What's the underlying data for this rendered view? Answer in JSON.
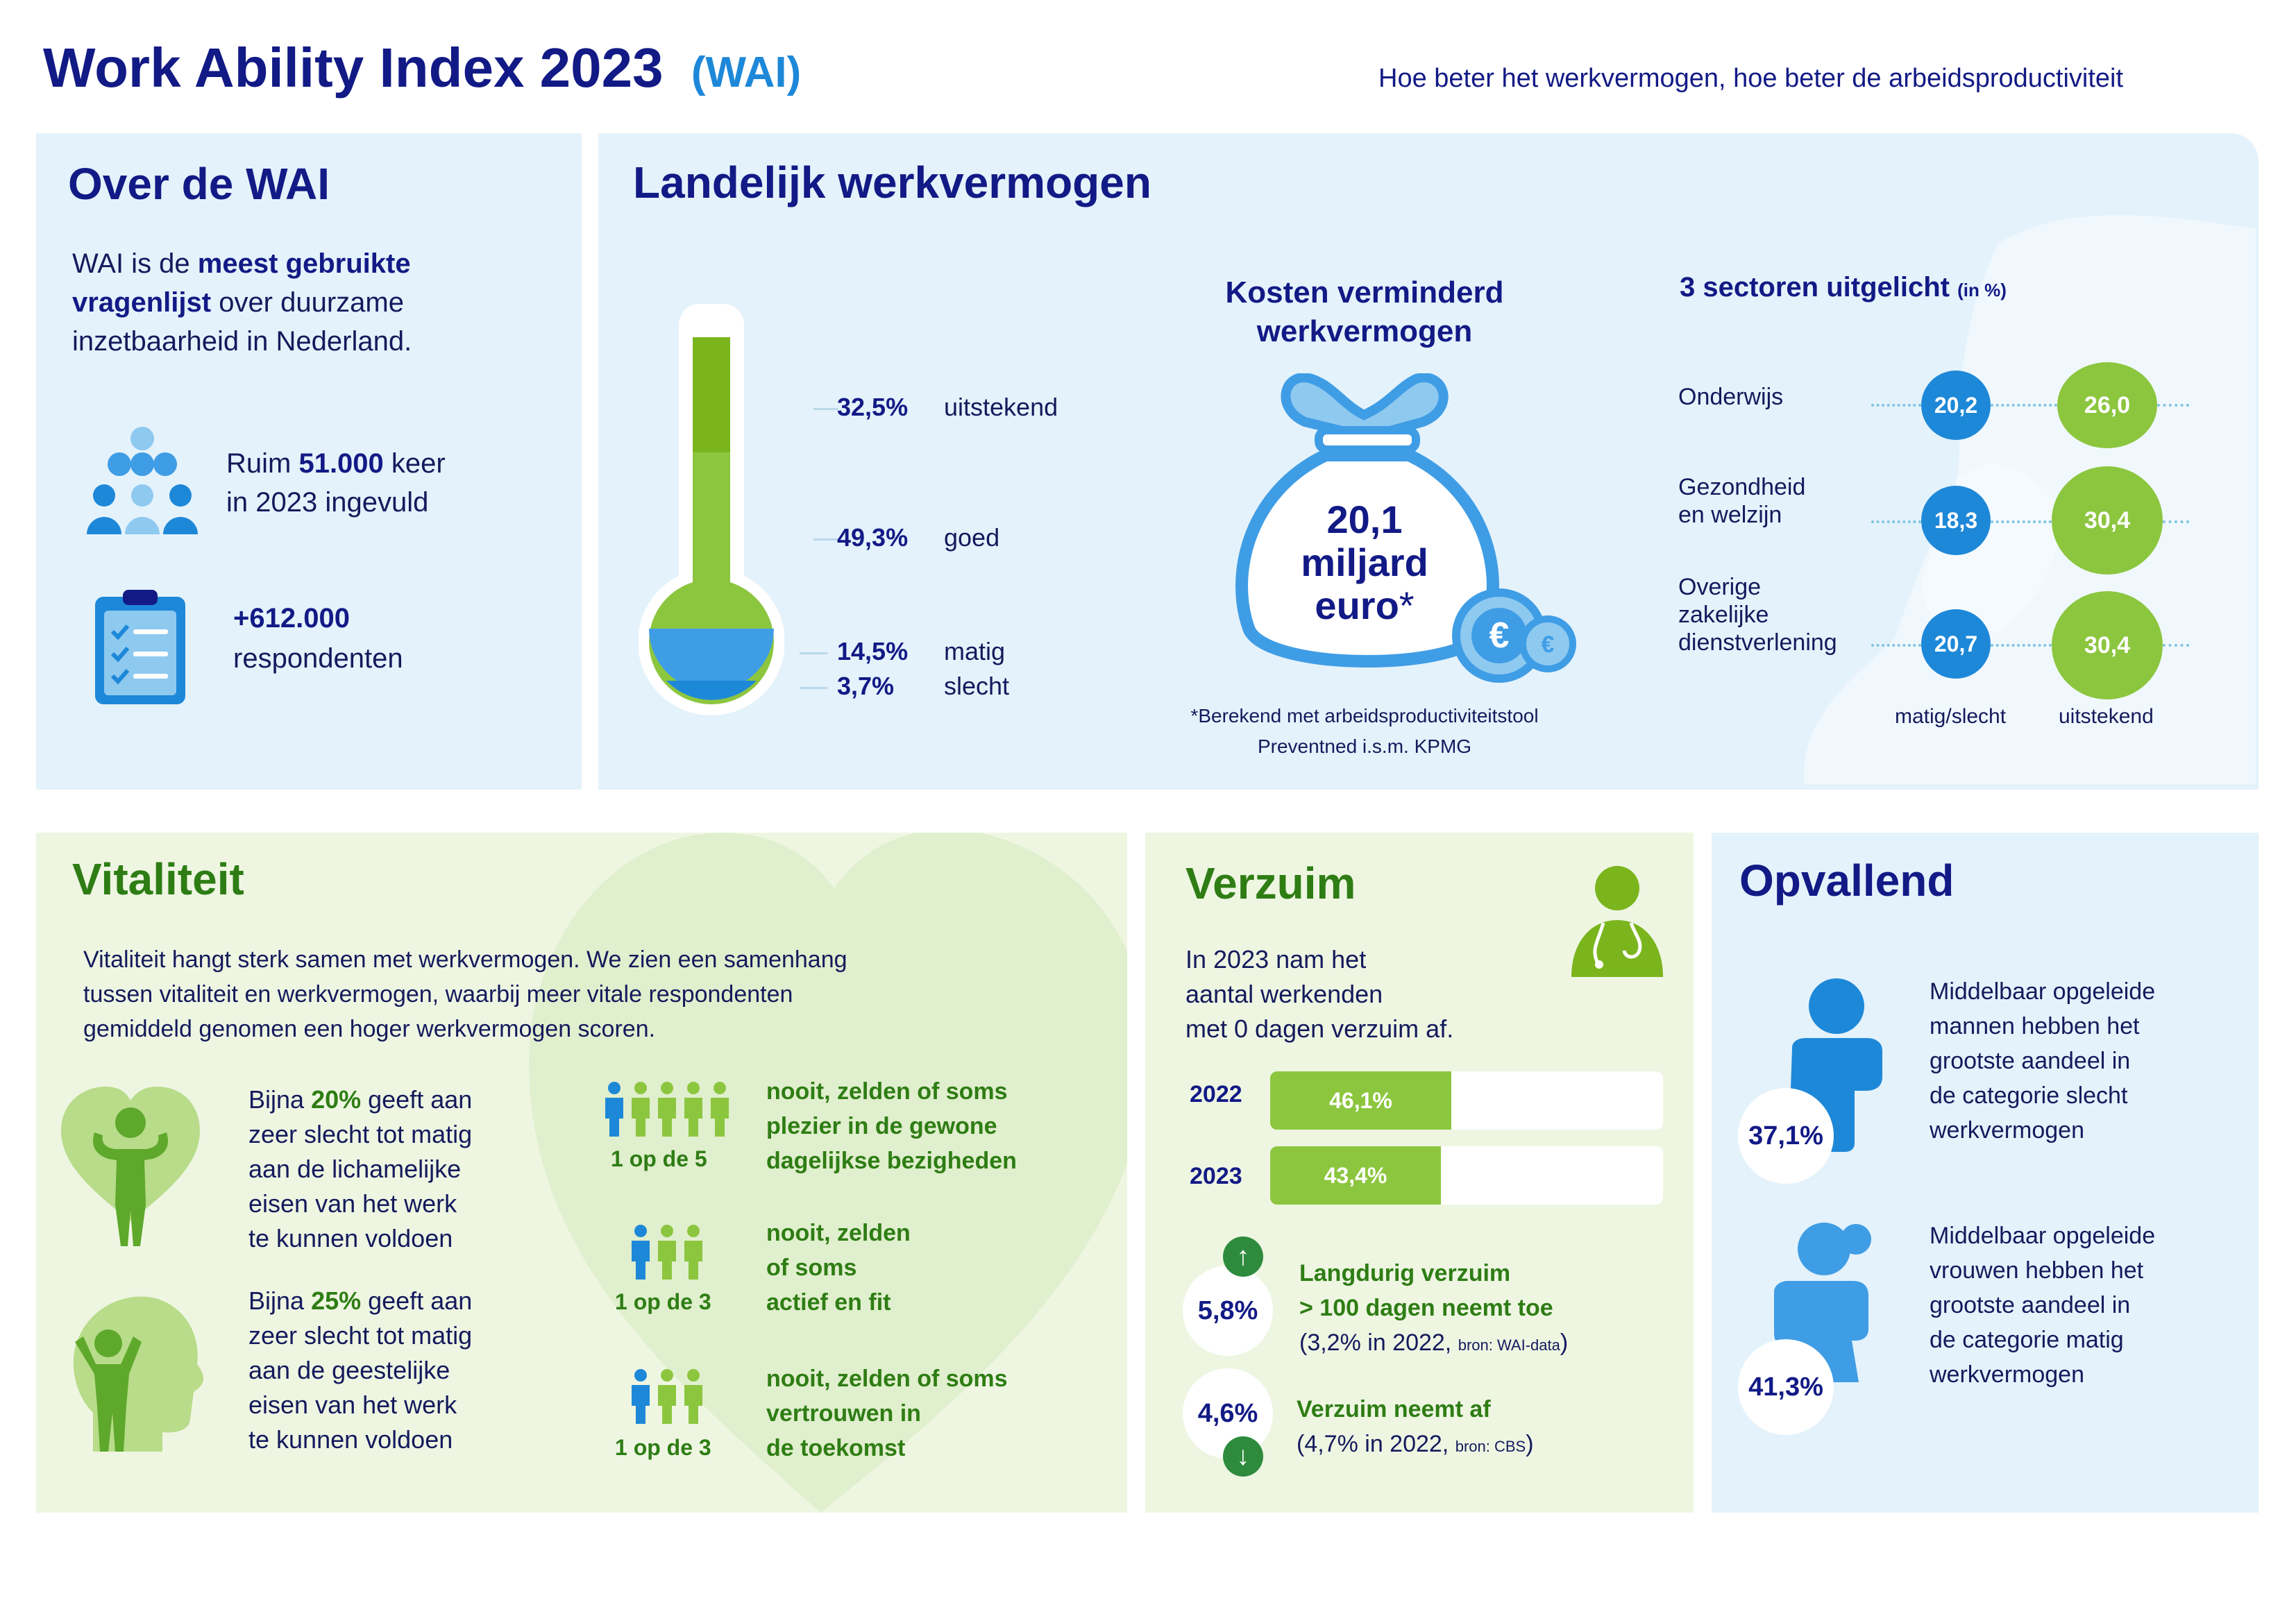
{
  "header": {
    "title": "Work Ability Index 2023",
    "title_tag": "(WAI)",
    "tagline": "Hoe beter het werkvermogen, hoe beter de arbeidsproductiviteit"
  },
  "over": {
    "heading": "Over de WAI",
    "intro_pre": "WAI is de ",
    "intro_bold": "meest gebruikte vragenlijst",
    "intro_post": " over duurzame inzetbaarheid in Nederland.",
    "stat1_pre": "Ruim ",
    "stat1_bold": "51.000",
    "stat1_post": " keer",
    "stat1_line2": "in 2023 ingevuld",
    "stat2_bold": "+612.000",
    "stat2_line2": "respondenten",
    "icons": [
      "people-group-icon",
      "clipboard-checklist-icon"
    ]
  },
  "landelijk": {
    "heading": "Landelijk werkvermogen",
    "thermometer": [
      {
        "pct": "32,5%",
        "label": "uitstekend",
        "value": 32.5
      },
      {
        "pct": "49,3%",
        "label": "goed",
        "value": 49.3
      },
      {
        "pct": "14,5%",
        "label": "matig",
        "value": 14.5
      },
      {
        "pct": "3,7%",
        "label": "slecht",
        "value": 3.7
      }
    ],
    "kosten_title_1": "Kosten  verminderd",
    "kosten_title_2": "werkvermogen",
    "bag_line1": "20,1",
    "bag_line2": "miljard",
    "bag_line3": "euro",
    "bag_star": "*",
    "footnote_1": "*Berekend met arbeidsproductiviteitstool",
    "footnote_2": "Preventned i.s.m. KPMG",
    "sectors_title": "3 sectoren uitgelicht",
    "sectors_unit": "(in %)",
    "sectors": [
      {
        "name_1": "Onderwijs",
        "name_2": "",
        "name_3": "",
        "matig": "20,2",
        "uitstekend": "26,0"
      },
      {
        "name_1": "Gezondheid",
        "name_2": "en welzijn",
        "name_3": "",
        "matig": "18,3",
        "uitstekend": "30,4"
      },
      {
        "name_1": "Overige",
        "name_2": "zakelijke",
        "name_3": "dienstverlening",
        "matig": "20,7",
        "uitstekend": "30,4"
      }
    ],
    "legend_matig": "matig/slecht",
    "legend_uitstekend": "uitstekend",
    "colors": {
      "blue": "#1e88d8",
      "green": "#8cc63f",
      "navy": "#121a86"
    }
  },
  "vitaliteit": {
    "heading": "Vitaliteit",
    "intro_1": "Vitaliteit hangt sterk samen met werkvermogen. We zien een samenhang",
    "intro_2": "tussen vitaliteit en werkvermogen, waarbij meer vitale respondenten",
    "intro_3": "gemiddeld genomen een hoger werkvermogen scoren.",
    "item1_pre": "Bijna ",
    "item1_bold": "20%",
    "item1_post": " geeft aan",
    "item1_l2": "zeer slecht tot matig",
    "item1_l3": "aan de lichamelijke",
    "item1_l4": "eisen van het werk",
    "item1_l5": "te kunnen voldoen",
    "item2_pre": "Bijna ",
    "item2_bold": "25%",
    "item2_post": " geeft aan",
    "item2_l2": "zeer slecht tot matig",
    "item2_l3": "aan de geestelijke",
    "item2_l4": "eisen van het werk",
    "item2_l5": "te kunnen voldoen",
    "ratios": [
      {
        "ratio": "1  op de 5",
        "l1": "nooit, zelden of  soms",
        "l2": "plezier in de gewone",
        "l3": "dagelijkse bezigheden"
      },
      {
        "ratio": "1 op de 3",
        "l1": "nooit, zelden",
        "l2": "of soms",
        "l3": "actief en fit"
      },
      {
        "ratio": "1 op de 3",
        "l1": "nooit, zelden of soms",
        "l2": "vertrouwen in",
        "l3": "de toekomst"
      }
    ]
  },
  "verzuim": {
    "heading": "Verzuim",
    "intro_1": "In 2023 nam het",
    "intro_2": "aantal werkenden",
    "intro_3": "met 0 dagen verzuim af.",
    "bars": [
      {
        "year": "2022",
        "label": "46,1%",
        "value": 46.1
      },
      {
        "year": "2023",
        "label": "43,4%",
        "value": 43.4
      }
    ],
    "stat1_value": "5,8%",
    "stat1_l1": "Langdurig verzuim",
    "stat1_l2": "> 100 dagen neemt toe",
    "stat1_l3": "(3,2% in 2022, ",
    "stat1_src": "bron: WAI-data",
    "stat1_close": ")",
    "stat2_value": "4,6%",
    "stat2_l1": "Verzuim neemt af",
    "stat2_l2": "(4,7% in 2022, ",
    "stat2_src": "bron: CBS",
    "stat2_close": ")",
    "stat1_icon": "arrow-up-icon",
    "stat2_icon": "arrow-down-icon"
  },
  "opvallend": {
    "heading": "Opvallend",
    "men_pct": "37,1%",
    "men_l1": "Middelbaar opgeleide",
    "men_l2": "mannen hebben het",
    "men_l3": "grootste aandeel in",
    "men_l4": "de categorie slecht",
    "men_l5": "werkvermogen",
    "women_pct": "41,3%",
    "women_l1": "Middelbaar opgeleide",
    "women_l2": "vrouwen hebben het",
    "women_l3": "grootste aandeel in",
    "women_l4": "de categorie matig",
    "women_l5": "werkvermogen"
  }
}
